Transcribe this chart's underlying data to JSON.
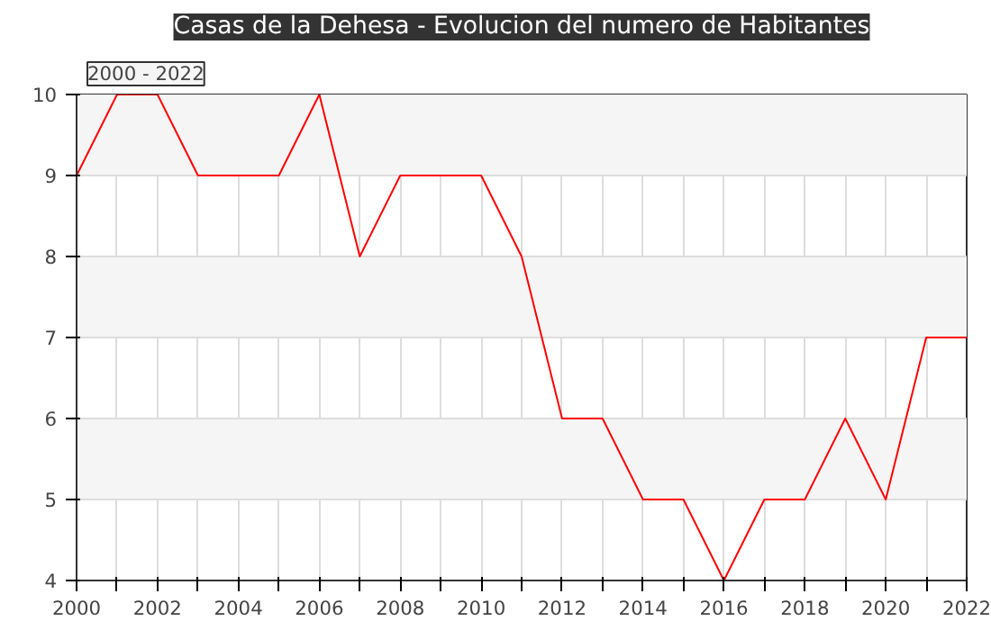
{
  "chart_data": {
    "type": "line",
    "title": "Casas de la Dehesa - Evolucion del numero de Habitantes",
    "annotations": [
      "2000 - 2022"
    ],
    "x": [
      2000,
      2001,
      2002,
      2003,
      2004,
      2005,
      2006,
      2007,
      2008,
      2009,
      2010,
      2011,
      2012,
      2013,
      2014,
      2015,
      2016,
      2017,
      2018,
      2019,
      2020,
      2021,
      2022
    ],
    "series": [
      {
        "color": "#ff0000",
        "values": [
          9,
          10,
          10,
          9,
          9,
          9,
          10,
          8,
          9,
          9,
          9,
          8,
          6,
          6,
          5,
          5,
          4,
          5,
          5,
          6,
          5,
          7,
          7
        ]
      }
    ],
    "xlim": [
      2000,
      2022
    ],
    "ylim": [
      4,
      10
    ],
    "xticks": [
      2000,
      {
        "value": 2001,
        "label": null
      },
      2002,
      {
        "value": 2003,
        "label": null
      },
      2004,
      {
        "value": 2005,
        "label": null
      },
      2006,
      {
        "value": 2007,
        "label": null
      },
      2008,
      {
        "value": 2009,
        "label": null
      },
      2010,
      {
        "value": 2011,
        "label": null
      },
      2012,
      {
        "value": 2013,
        "label": null
      },
      2014,
      {
        "value": 2015,
        "label": null
      },
      2016,
      {
        "value": 2017,
        "label": null
      },
      2018,
      {
        "value": 2019,
        "label": null
      },
      2020,
      {
        "value": 2021,
        "label": null
      },
      2022
    ],
    "yticks": [
      4,
      5,
      6,
      7,
      8,
      9,
      10
    ],
    "grid": true,
    "marker": "none",
    "line_style": "solid"
  }
}
